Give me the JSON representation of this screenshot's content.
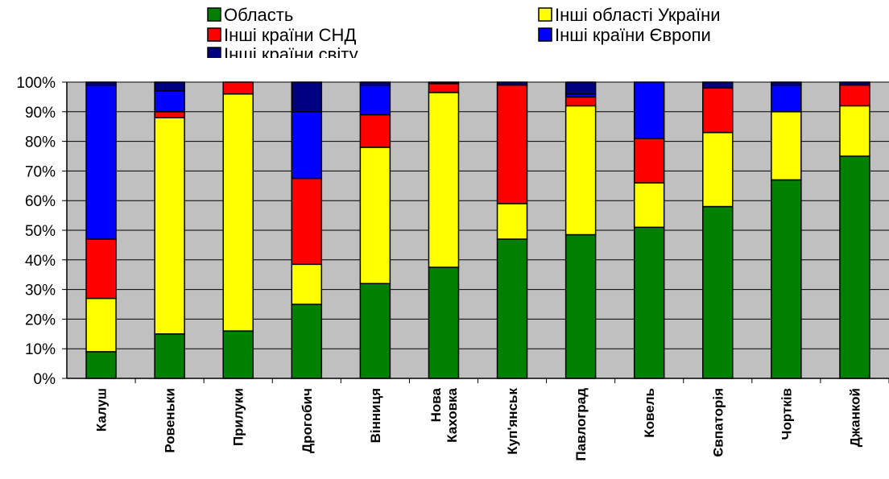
{
  "chart_data": {
    "type": "bar",
    "stacked": true,
    "percent": true,
    "categories": [
      "Калуш",
      "Ровеньки",
      "Прилуки",
      "Дрогобич",
      "Вінниця",
      "Нова Каховка",
      "Куп'янськ",
      "Павлоград",
      "Ковель",
      "Євпаторія",
      "Чортків",
      "Джанкой"
    ],
    "category_label_lines": [
      [
        "Калуш"
      ],
      [
        "Ровеньки"
      ],
      [
        "Прилуки"
      ],
      [
        "Дрогобич"
      ],
      [
        "Вінниця"
      ],
      [
        "Нова",
        "Каховка"
      ],
      [
        "Куп'янськ"
      ],
      [
        "Павлоград"
      ],
      [
        "Ковель"
      ],
      [
        "Євпаторія"
      ],
      [
        "Чортків"
      ],
      [
        "Джанкой"
      ]
    ],
    "series": [
      {
        "name": "Область",
        "color": "#008000",
        "values": [
          9,
          15,
          16,
          25,
          32,
          37.5,
          47,
          48.5,
          51,
          58,
          67,
          75
        ]
      },
      {
        "name": "Інші області України",
        "color": "#FFFF00",
        "values": [
          18,
          73,
          80,
          13.5,
          46,
          59,
          12,
          43.5,
          15,
          25,
          23,
          17
        ]
      },
      {
        "name": "Інші країни СНД",
        "color": "#FF0000",
        "values": [
          20,
          2,
          4,
          29,
          11,
          3,
          40,
          3,
          15,
          15,
          0,
          7
        ]
      },
      {
        "name": "Інші країни Європи",
        "color": "#0000FF",
        "values": [
          52,
          7,
          0,
          22.5,
          10,
          0,
          0,
          1,
          19,
          0,
          9,
          0
        ]
      },
      {
        "name": "Інші країни світу",
        "color": "#000080",
        "values": [
          1,
          3,
          0,
          10,
          1,
          0.5,
          1,
          4,
          0,
          2,
          1,
          1
        ]
      }
    ],
    "y_ticks": [
      "0%",
      "10%",
      "20%",
      "30%",
      "40%",
      "50%",
      "60%",
      "70%",
      "80%",
      "90%",
      "100%"
    ],
    "ylim": [
      0,
      100
    ],
    "grid": true,
    "plot_background": "#C0C0C0",
    "legend_position": "top"
  }
}
